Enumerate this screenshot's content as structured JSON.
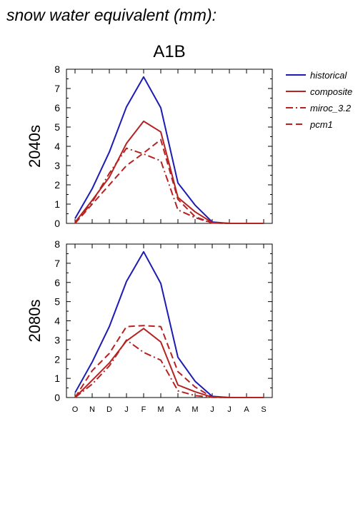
{
  "figure": {
    "title": "snow water equivalent (mm):",
    "scenario": "A1B"
  },
  "legend": {
    "placement": "right",
    "entries": [
      {
        "label": "historical",
        "color": "#1c1cb4",
        "dash": "solid"
      },
      {
        "label": "composite",
        "color": "#b42222",
        "dash": "solid"
      },
      {
        "label": "miroc_3.2",
        "color": "#b42222",
        "dash": "dashdot"
      },
      {
        "label": "pcm1",
        "color": "#b42222",
        "dash": "dashed"
      }
    ]
  },
  "chart_data": [
    {
      "type": "line",
      "panel_label": "2040s",
      "categories": [
        "O",
        "N",
        "D",
        "J",
        "F",
        "M",
        "A",
        "M",
        "J",
        "J",
        "A",
        "S"
      ],
      "yticks": [
        "0",
        "1",
        "2",
        "3",
        "4",
        "5",
        "6",
        "7",
        "8"
      ],
      "ylim": [
        0,
        8
      ],
      "grid": false,
      "series": [
        {
          "name": "historical",
          "values": [
            0.25,
            1.8,
            3.7,
            6.05,
            7.6,
            6.0,
            2.1,
            0.95,
            0.07,
            0.0,
            0.0,
            0.0
          ]
        },
        {
          "name": "composite",
          "values": [
            0.05,
            1.2,
            2.4,
            4.15,
            5.3,
            4.75,
            1.35,
            0.6,
            0.04,
            0.0,
            0.0,
            0.0
          ]
        },
        {
          "name": "miroc_3.2",
          "values": [
            0.0,
            1.1,
            2.6,
            3.9,
            3.6,
            3.25,
            0.7,
            0.3,
            0.02,
            0.0,
            0.0,
            0.0
          ]
        },
        {
          "name": "pcm1",
          "values": [
            0.0,
            1.0,
            2.0,
            3.0,
            3.65,
            4.35,
            1.25,
            0.35,
            0.02,
            0.0,
            0.0,
            0.0
          ]
        }
      ]
    },
    {
      "type": "line",
      "panel_label": "2080s",
      "categories": [
        "O",
        "N",
        "D",
        "J",
        "F",
        "M",
        "A",
        "M",
        "J",
        "J",
        "A",
        "S"
      ],
      "yticks": [
        "0",
        "1",
        "2",
        "3",
        "4",
        "5",
        "6",
        "7",
        "8"
      ],
      "ylim": [
        0,
        8
      ],
      "grid": false,
      "series": [
        {
          "name": "historical",
          "values": [
            0.25,
            1.85,
            3.7,
            6.05,
            7.6,
            5.95,
            2.1,
            0.85,
            0.06,
            0.0,
            0.0,
            0.0
          ]
        },
        {
          "name": "composite",
          "values": [
            0.0,
            0.9,
            1.8,
            2.95,
            3.6,
            2.9,
            0.65,
            0.3,
            0.02,
            0.0,
            0.0,
            0.0
          ]
        },
        {
          "name": "miroc_3.2",
          "values": [
            0.0,
            0.7,
            1.65,
            3.0,
            2.35,
            1.95,
            0.35,
            0.1,
            0.01,
            0.0,
            0.0,
            0.0
          ]
        },
        {
          "name": "pcm1",
          "values": [
            0.0,
            1.4,
            2.3,
            3.7,
            3.75,
            3.7,
            1.35,
            0.55,
            0.02,
            0.0,
            0.0,
            0.0
          ]
        }
      ]
    }
  ]
}
